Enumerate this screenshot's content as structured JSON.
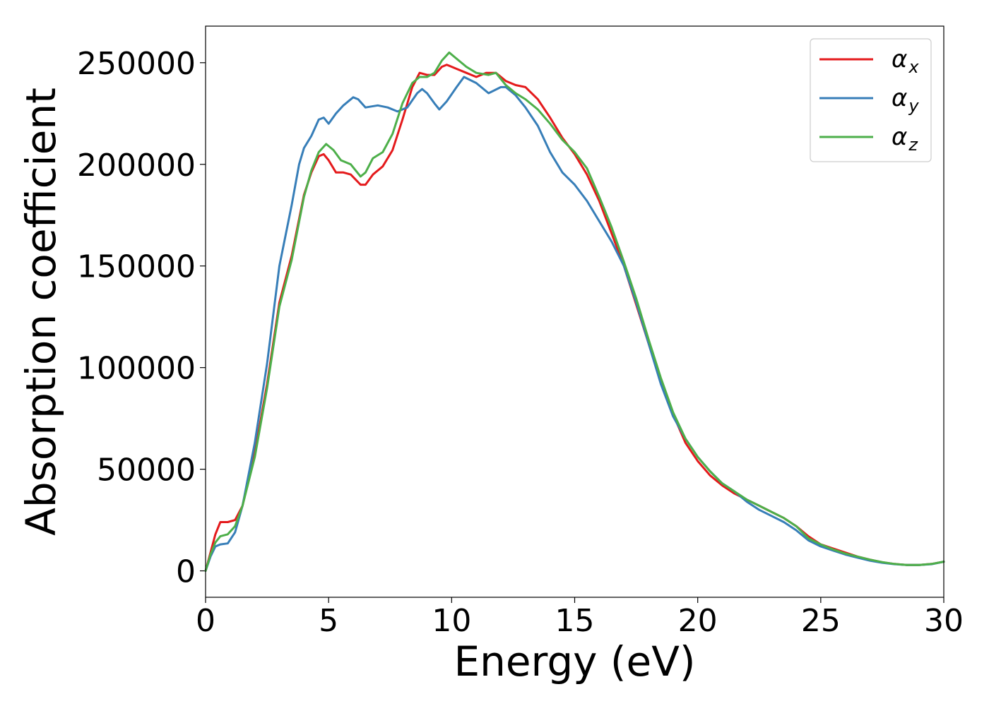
{
  "chart_data": {
    "type": "line",
    "xlabel": "Energy (eV)",
    "ylabel": "Absorption coefficient",
    "xlim": [
      0,
      30
    ],
    "ylim": [
      -13000,
      268000
    ],
    "xticks": [
      0,
      5,
      10,
      15,
      20,
      25,
      30
    ],
    "yticks": [
      0,
      50000,
      100000,
      150000,
      200000,
      250000
    ],
    "legend_position": "top-right",
    "grid": false,
    "series": [
      {
        "name": "α",
        "sub": "x",
        "color": "#e41a1c",
        "points": [
          [
            0,
            0
          ],
          [
            0.2,
            9000
          ],
          [
            0.4,
            18000
          ],
          [
            0.6,
            24000
          ],
          [
            0.9,
            24000
          ],
          [
            1.2,
            25000
          ],
          [
            1.5,
            32000
          ],
          [
            2.0,
            58000
          ],
          [
            2.5,
            92000
          ],
          [
            3.0,
            132000
          ],
          [
            3.5,
            155000
          ],
          [
            4.0,
            185000
          ],
          [
            4.3,
            196000
          ],
          [
            4.6,
            204000
          ],
          [
            4.8,
            205000
          ],
          [
            5.0,
            202000
          ],
          [
            5.3,
            196000
          ],
          [
            5.6,
            196000
          ],
          [
            5.9,
            195000
          ],
          [
            6.3,
            190000
          ],
          [
            6.5,
            190000
          ],
          [
            6.8,
            195000
          ],
          [
            7.2,
            199000
          ],
          [
            7.6,
            207000
          ],
          [
            8.0,
            222000
          ],
          [
            8.4,
            238000
          ],
          [
            8.7,
            245000
          ],
          [
            9.0,
            244000
          ],
          [
            9.3,
            244000
          ],
          [
            9.6,
            248000
          ],
          [
            9.8,
            249000
          ],
          [
            10.2,
            247000
          ],
          [
            10.6,
            245000
          ],
          [
            11.0,
            243000
          ],
          [
            11.4,
            245000
          ],
          [
            11.8,
            245000
          ],
          [
            12.2,
            241000
          ],
          [
            12.6,
            239000
          ],
          [
            13.0,
            238000
          ],
          [
            13.5,
            232000
          ],
          [
            14.0,
            223000
          ],
          [
            14.5,
            213000
          ],
          [
            15.0,
            205000
          ],
          [
            15.5,
            195000
          ],
          [
            16.0,
            182000
          ],
          [
            16.5,
            166000
          ],
          [
            17.0,
            150000
          ],
          [
            17.5,
            131000
          ],
          [
            18.0,
            112000
          ],
          [
            18.5,
            93000
          ],
          [
            19.0,
            77000
          ],
          [
            19.5,
            63000
          ],
          [
            20.0,
            54000
          ],
          [
            20.5,
            47000
          ],
          [
            21.0,
            42000
          ],
          [
            21.5,
            38000
          ],
          [
            22.0,
            35000
          ],
          [
            22.5,
            32000
          ],
          [
            23.0,
            29000
          ],
          [
            23.5,
            26000
          ],
          [
            24.0,
            22000
          ],
          [
            24.5,
            17000
          ],
          [
            25.0,
            13000
          ],
          [
            25.5,
            11000
          ],
          [
            26.0,
            9000
          ],
          [
            26.5,
            7000
          ],
          [
            27.0,
            5500
          ],
          [
            27.5,
            4200
          ],
          [
            28.0,
            3400
          ],
          [
            28.5,
            2900
          ],
          [
            29.0,
            2900
          ],
          [
            29.5,
            3400
          ],
          [
            30.0,
            4500
          ]
        ]
      },
      {
        "name": "α",
        "sub": "y",
        "color": "#377eb8",
        "points": [
          [
            0,
            0
          ],
          [
            0.2,
            7000
          ],
          [
            0.4,
            12000
          ],
          [
            0.6,
            13000
          ],
          [
            0.9,
            13500
          ],
          [
            1.2,
            19000
          ],
          [
            1.5,
            32000
          ],
          [
            2.0,
            63000
          ],
          [
            2.5,
            102000
          ],
          [
            3.0,
            150000
          ],
          [
            3.5,
            180000
          ],
          [
            3.8,
            200000
          ],
          [
            4.0,
            208000
          ],
          [
            4.3,
            214000
          ],
          [
            4.6,
            222000
          ],
          [
            4.8,
            223000
          ],
          [
            5.0,
            220000
          ],
          [
            5.3,
            225000
          ],
          [
            5.6,
            229000
          ],
          [
            6.0,
            233000
          ],
          [
            6.2,
            232000
          ],
          [
            6.5,
            228000
          ],
          [
            7.0,
            229000
          ],
          [
            7.4,
            228000
          ],
          [
            7.8,
            226000
          ],
          [
            8.2,
            228000
          ],
          [
            8.6,
            235000
          ],
          [
            8.8,
            237000
          ],
          [
            9.0,
            235000
          ],
          [
            9.3,
            230000
          ],
          [
            9.5,
            227000
          ],
          [
            9.8,
            231000
          ],
          [
            10.2,
            238000
          ],
          [
            10.5,
            243000
          ],
          [
            11.0,
            240000
          ],
          [
            11.5,
            235000
          ],
          [
            12.0,
            238000
          ],
          [
            12.2,
            238000
          ],
          [
            12.6,
            234000
          ],
          [
            13.0,
            228000
          ],
          [
            13.5,
            219000
          ],
          [
            14.0,
            206000
          ],
          [
            14.5,
            196000
          ],
          [
            15.0,
            190000
          ],
          [
            15.5,
            182000
          ],
          [
            16.0,
            172000
          ],
          [
            16.5,
            162000
          ],
          [
            17.0,
            150000
          ],
          [
            17.5,
            132000
          ],
          [
            18.0,
            112000
          ],
          [
            18.5,
            92000
          ],
          [
            19.0,
            76000
          ],
          [
            19.5,
            65000
          ],
          [
            20.0,
            56000
          ],
          [
            20.5,
            49000
          ],
          [
            21.0,
            43000
          ],
          [
            21.5,
            39000
          ],
          [
            22.0,
            34000
          ],
          [
            22.5,
            30000
          ],
          [
            23.0,
            27000
          ],
          [
            23.5,
            24000
          ],
          [
            24.0,
            20000
          ],
          [
            24.5,
            15000
          ],
          [
            25.0,
            12000
          ],
          [
            25.5,
            10000
          ],
          [
            26.0,
            8000
          ],
          [
            26.5,
            6500
          ],
          [
            27.0,
            5000
          ],
          [
            27.5,
            4000
          ],
          [
            28.0,
            3300
          ],
          [
            28.5,
            2900
          ],
          [
            29.0,
            2900
          ],
          [
            29.5,
            3300
          ],
          [
            30.0,
            4500
          ]
        ]
      },
      {
        "name": "α",
        "sub": "z",
        "color": "#4daf4a",
        "points": [
          [
            0,
            0
          ],
          [
            0.2,
            8000
          ],
          [
            0.4,
            14000
          ],
          [
            0.6,
            17000
          ],
          [
            0.9,
            18000
          ],
          [
            1.2,
            22000
          ],
          [
            1.5,
            32000
          ],
          [
            2.0,
            56000
          ],
          [
            2.5,
            90000
          ],
          [
            3.0,
            130000
          ],
          [
            3.5,
            153000
          ],
          [
            4.0,
            184000
          ],
          [
            4.3,
            197000
          ],
          [
            4.6,
            206000
          ],
          [
            4.9,
            210000
          ],
          [
            5.2,
            207000
          ],
          [
            5.5,
            202000
          ],
          [
            5.9,
            200000
          ],
          [
            6.3,
            194000
          ],
          [
            6.5,
            196000
          ],
          [
            6.8,
            203000
          ],
          [
            7.2,
            206000
          ],
          [
            7.6,
            215000
          ],
          [
            8.0,
            230000
          ],
          [
            8.4,
            240000
          ],
          [
            8.7,
            243000
          ],
          [
            9.0,
            243000
          ],
          [
            9.3,
            245000
          ],
          [
            9.6,
            251000
          ],
          [
            9.9,
            255000
          ],
          [
            10.2,
            252000
          ],
          [
            10.6,
            248000
          ],
          [
            11.0,
            245000
          ],
          [
            11.5,
            244000
          ],
          [
            11.8,
            245000
          ],
          [
            12.2,
            239000
          ],
          [
            12.6,
            235000
          ],
          [
            13.0,
            232000
          ],
          [
            13.5,
            227000
          ],
          [
            14.0,
            220000
          ],
          [
            14.5,
            212000
          ],
          [
            15.0,
            206000
          ],
          [
            15.5,
            198000
          ],
          [
            16.0,
            184000
          ],
          [
            16.5,
            169000
          ],
          [
            17.0,
            152000
          ],
          [
            17.5,
            134000
          ],
          [
            18.0,
            114000
          ],
          [
            18.5,
            95000
          ],
          [
            19.0,
            78000
          ],
          [
            19.5,
            65000
          ],
          [
            20.0,
            56000
          ],
          [
            20.5,
            49000
          ],
          [
            21.0,
            43000
          ],
          [
            21.5,
            39000
          ],
          [
            22.0,
            35000
          ],
          [
            22.5,
            32000
          ],
          [
            23.0,
            29000
          ],
          [
            23.5,
            26000
          ],
          [
            24.0,
            22000
          ],
          [
            24.5,
            16000
          ],
          [
            25.0,
            13000
          ],
          [
            25.5,
            10500
          ],
          [
            26.0,
            8500
          ],
          [
            26.5,
            7000
          ],
          [
            27.0,
            5500
          ],
          [
            27.5,
            4300
          ],
          [
            28.0,
            3400
          ],
          [
            28.5,
            2900
          ],
          [
            29.0,
            2900
          ],
          [
            29.5,
            3400
          ],
          [
            30.0,
            4500
          ]
        ]
      }
    ]
  }
}
